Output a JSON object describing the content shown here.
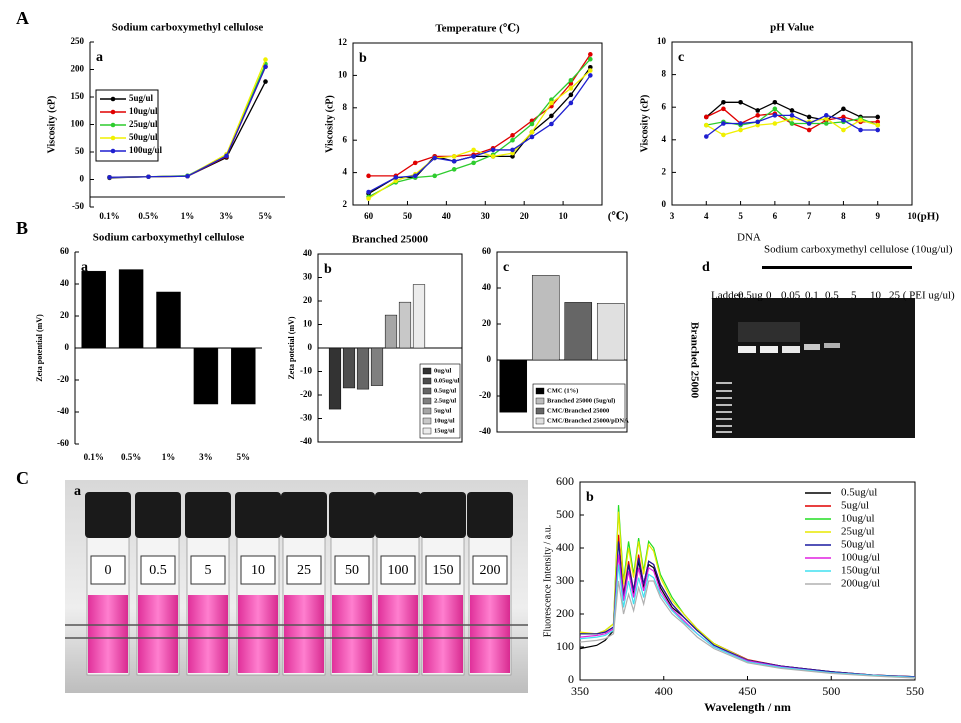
{
  "figure_labels": [
    "A",
    "B",
    "C"
  ],
  "chart_data": [
    {
      "type": "line",
      "panel_label": "a",
      "title": "Sodium carboxymethyl cellulose",
      "ylabel": "Viscosity (cP)",
      "categories": [
        "0.1%",
        "0.5%",
        "1%",
        "3%",
        "5%"
      ],
      "ylim": [
        -50,
        250
      ],
      "yticks": [
        -50,
        0,
        50,
        100,
        150,
        200,
        250
      ],
      "markers": true,
      "legend": "upper left",
      "series": [
        {
          "name": "5ug/ul",
          "color": "#000000",
          "values": [
            3,
            5,
            6,
            40,
            178
          ]
        },
        {
          "name": "10ug/ul",
          "color": "#e00000",
          "values": [
            4,
            5,
            6,
            42,
            205
          ]
        },
        {
          "name": "25ug/ul",
          "color": "#2ecc2e",
          "values": [
            4,
            5,
            7,
            44,
            210
          ]
        },
        {
          "name": "50ug/ul",
          "color": "#f0f000",
          "values": [
            4,
            5,
            6,
            46,
            218
          ]
        },
        {
          "name": "100ug/ul",
          "color": "#1f1fd0",
          "values": [
            4,
            5,
            6,
            43,
            205
          ]
        }
      ]
    },
    {
      "type": "line",
      "panel_label": "b",
      "title": "Temperature (℃)",
      "ylabel": "Viscosity (cP)",
      "x_unit": "(℃)",
      "x": [
        60,
        53,
        48,
        43,
        38,
        33,
        28,
        23,
        18,
        13,
        8,
        3
      ],
      "xlim": [
        64,
        0
      ],
      "xticks": [
        60,
        50,
        40,
        30,
        20,
        10
      ],
      "ylim": [
        2,
        12
      ],
      "yticks": [
        2,
        4,
        6,
        8,
        10,
        12
      ],
      "markers": true,
      "series": [
        {
          "color": "#000000",
          "values": [
            2.7,
            3.7,
            3.7,
            5.0,
            4.7,
            5.0,
            5.0,
            5.0,
            6.5,
            7.5,
            8.8,
            10.5
          ]
        },
        {
          "color": "#e00000",
          "values": [
            3.8,
            3.8,
            4.6,
            5.0,
            5.0,
            5.1,
            5.5,
            6.3,
            7.2,
            8.1,
            9.5,
            11.3
          ]
        },
        {
          "color": "#2ecc2e",
          "values": [
            2.5,
            3.4,
            3.7,
            3.8,
            4.2,
            4.6,
            5.1,
            6.0,
            7.0,
            8.5,
            9.7,
            11.0
          ]
        },
        {
          "color": "#f0f000",
          "values": [
            2.4,
            3.5,
            3.9,
            4.9,
            5.0,
            5.4,
            5.0,
            5.2,
            6.5,
            8.3,
            9.2,
            10.3
          ]
        },
        {
          "color": "#1f1fd0",
          "values": [
            2.8,
            3.7,
            3.8,
            4.9,
            4.7,
            5.0,
            5.4,
            5.4,
            6.2,
            7.0,
            8.3,
            10.0
          ]
        }
      ]
    },
    {
      "type": "line",
      "panel_label": "c",
      "title": "pH Value",
      "ylabel": "Viscosity (cP)",
      "x_unit": "(pH)",
      "x": [
        4,
        4.5,
        5,
        5.5,
        6,
        6.5,
        7,
        7.5,
        8,
        8.5,
        9
      ],
      "xlim": [
        3,
        10
      ],
      "xticks": [
        3,
        4,
        5,
        6,
        7,
        8,
        9,
        10
      ],
      "ylim": [
        0,
        10
      ],
      "yticks": [
        0,
        2,
        4,
        6,
        8,
        10
      ],
      "markers": true,
      "series": [
        {
          "color": "#000000",
          "values": [
            5.4,
            6.3,
            6.3,
            5.8,
            6.3,
            5.8,
            5.4,
            5.2,
            5.9,
            5.4,
            5.4
          ]
        },
        {
          "color": "#e00000",
          "values": [
            5.4,
            5.9,
            5.0,
            5.5,
            5.6,
            5.0,
            4.6,
            5.2,
            5.4,
            5.1,
            5.1
          ]
        },
        {
          "color": "#2ecc2e",
          "values": [
            4.9,
            5.1,
            4.9,
            5.1,
            5.9,
            5.0,
            5.0,
            5.0,
            5.1,
            5.3,
            4.9
          ]
        },
        {
          "color": "#f0f000",
          "values": [
            4.9,
            4.3,
            4.6,
            4.9,
            5.0,
            5.3,
            5.1,
            5.3,
            4.6,
            5.2,
            4.9
          ]
        },
        {
          "color": "#1f1fd0",
          "values": [
            4.2,
            5.0,
            5.0,
            5.1,
            5.5,
            5.5,
            5.0,
            5.5,
            5.2,
            4.6,
            4.6
          ]
        }
      ]
    },
    {
      "type": "bar",
      "panel_label": "a",
      "title": "Sodium carboxymethyl cellulose",
      "ylabel": "Zeta potential (mV)",
      "categories": [
        "0.1%",
        "0.5%",
        "1%",
        "3%",
        "5%"
      ],
      "values": [
        48,
        49,
        35,
        -35,
        -35
      ],
      "color": "#000000",
      "ylim": [
        -60,
        60
      ],
      "yticks": [
        -60,
        -40,
        -20,
        0,
        20,
        40,
        60
      ]
    },
    {
      "type": "bar",
      "panel_label": "b",
      "title": "Branched 25000",
      "ylabel": "Zeta potetial (mV)",
      "legend": "lower right",
      "categories": [
        "0ug/ul",
        "0.05ug/ul",
        "0.5ug/ul",
        "2.5ug/ul",
        "5ug/ul",
        "10ug/ul",
        "15ug/ul"
      ],
      "values": [
        -26,
        -17,
        -17.5,
        -16,
        14,
        19.5,
        27
      ],
      "colors": [
        "#333333",
        "#4d4d4d",
        "#666666",
        "#808080",
        "#a6a6a6",
        "#c8c8c8",
        "#ececec"
      ],
      "ylim": [
        -40,
        40
      ],
      "yticks": [
        -40,
        -30,
        -20,
        -10,
        0,
        10,
        20,
        30,
        40
      ]
    },
    {
      "type": "bar",
      "panel_label": "c",
      "legend": "lower right",
      "categories": [
        "CMC (1%)",
        "Branched 25000 (5ug/ul)",
        "CMC/Branched 25000",
        "CMC/Branched 25000/pDNA"
      ],
      "values": [
        -29,
        47,
        32,
        31.5
      ],
      "colors": [
        "#000000",
        "#bdbdbd",
        "#666666",
        "#e0e0e0"
      ],
      "ylim": [
        -40,
        60
      ],
      "yticks": [
        -40,
        -20,
        0,
        20,
        40,
        60
      ]
    },
    {
      "type": "line",
      "panel_label": "b",
      "xlabel": "Wavelength / nm",
      "ylabel": "Fluorescence Intensity / a.u.",
      "legend": "upper right",
      "x": [
        350,
        360,
        365,
        370,
        373,
        376,
        379,
        382,
        385,
        388,
        391,
        394,
        398,
        405,
        412,
        420,
        430,
        450,
        470,
        500,
        525,
        550
      ],
      "xlim": [
        350,
        550
      ],
      "xticks": [
        350,
        400,
        450,
        500,
        550
      ],
      "ylim": [
        0,
        600
      ],
      "yticks": [
        0,
        100,
        200,
        300,
        400,
        500,
        600
      ],
      "series": [
        {
          "name": "0.5ug/ul",
          "color": "#000000",
          "values": [
            95,
            105,
            120,
            150,
            430,
            250,
            350,
            260,
            360,
            280,
            350,
            340,
            280,
            220,
            190,
            150,
            110,
            60,
            42,
            25,
            15,
            10
          ]
        },
        {
          "name": "5ug/ul",
          "color": "#e00000",
          "values": [
            140,
            140,
            145,
            160,
            440,
            260,
            360,
            270,
            380,
            290,
            360,
            350,
            290,
            230,
            190,
            150,
            110,
            62,
            42,
            25,
            15,
            10
          ]
        },
        {
          "name": "10ug/ul",
          "color": "#22dd22",
          "values": [
            140,
            140,
            150,
            170,
            530,
            300,
            420,
            320,
            430,
            330,
            420,
            400,
            320,
            250,
            200,
            155,
            110,
            60,
            40,
            22,
            14,
            8
          ]
        },
        {
          "name": "25ug/ul",
          "color": "#e8e800",
          "values": [
            145,
            140,
            150,
            170,
            510,
            290,
            400,
            310,
            420,
            320,
            410,
            390,
            310,
            240,
            200,
            155,
            110,
            60,
            40,
            22,
            14,
            8
          ]
        },
        {
          "name": "50ug/ul",
          "color": "#1a1aa0",
          "values": [
            140,
            140,
            145,
            160,
            420,
            250,
            350,
            270,
            370,
            290,
            360,
            350,
            290,
            230,
            190,
            150,
            105,
            60,
            42,
            25,
            15,
            10
          ]
        },
        {
          "name": "100ug/ul",
          "color": "#e020e0",
          "values": [
            130,
            135,
            140,
            155,
            380,
            240,
            330,
            250,
            340,
            270,
            340,
            330,
            270,
            215,
            180,
            140,
            100,
            58,
            40,
            22,
            14,
            8
          ]
        },
        {
          "name": "150ug/ul",
          "color": "#40e0f0",
          "values": [
            125,
            130,
            135,
            150,
            350,
            220,
            300,
            230,
            310,
            250,
            320,
            310,
            260,
            210,
            175,
            140,
            100,
            55,
            38,
            22,
            14,
            8
          ]
        },
        {
          "name": "200ug/ul",
          "color": "#b0b0b0",
          "values": [
            115,
            120,
            125,
            140,
            300,
            200,
            260,
            210,
            280,
            230,
            300,
            300,
            250,
            200,
            170,
            130,
            95,
            52,
            35,
            20,
            12,
            6
          ]
        }
      ]
    }
  ],
  "gel": {
    "panel_label": "d",
    "lane_group": "DNA",
    "header": "Sodium carboxymethyl cellulose (10ug/ul)",
    "lanes": [
      "Ladder",
      "0.5ug",
      "0",
      "0.05",
      "0.1",
      "0.5",
      "5",
      "10",
      "25 ( PEI ug/ul)"
    ],
    "side_label": "Branched 25000"
  },
  "vials": {
    "panel_label": "a",
    "labels": [
      "0",
      "0.5",
      "5",
      "10",
      "25",
      "50",
      "100",
      "150",
      "200"
    ]
  }
}
